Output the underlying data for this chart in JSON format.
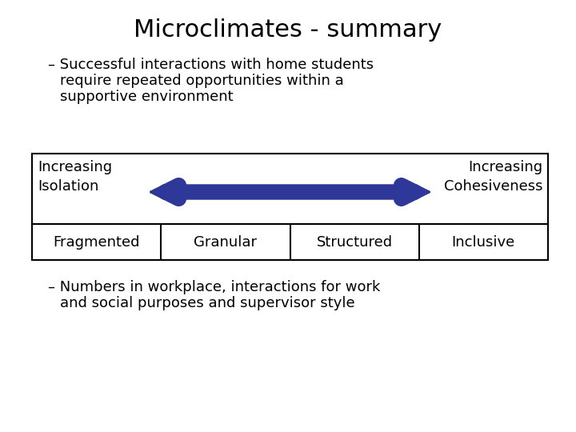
{
  "title": "Microclimates - summary",
  "bullet1_line1": "– Successful interactions with home students",
  "bullet1_line2": "require repeated opportunities within a",
  "bullet1_line3": "supportive environment",
  "left_label_line1": "Increasing",
  "left_label_line2": "Isolation",
  "right_label_line1": "Increasing",
  "right_label_line2": "Cohesiveness",
  "row2_labels": [
    "Fragmented",
    "Granular",
    "Structured",
    "Inclusive"
  ],
  "bullet2_line1": "– Numbers in workplace, interactions for work",
  "bullet2_line2": "and social purposes and supervisor style",
  "arrow_color": "#2E3899",
  "bg_color": "#ffffff",
  "text_color": "#000000",
  "title_fontsize": 22,
  "body_fontsize": 13,
  "table_fontsize": 13
}
